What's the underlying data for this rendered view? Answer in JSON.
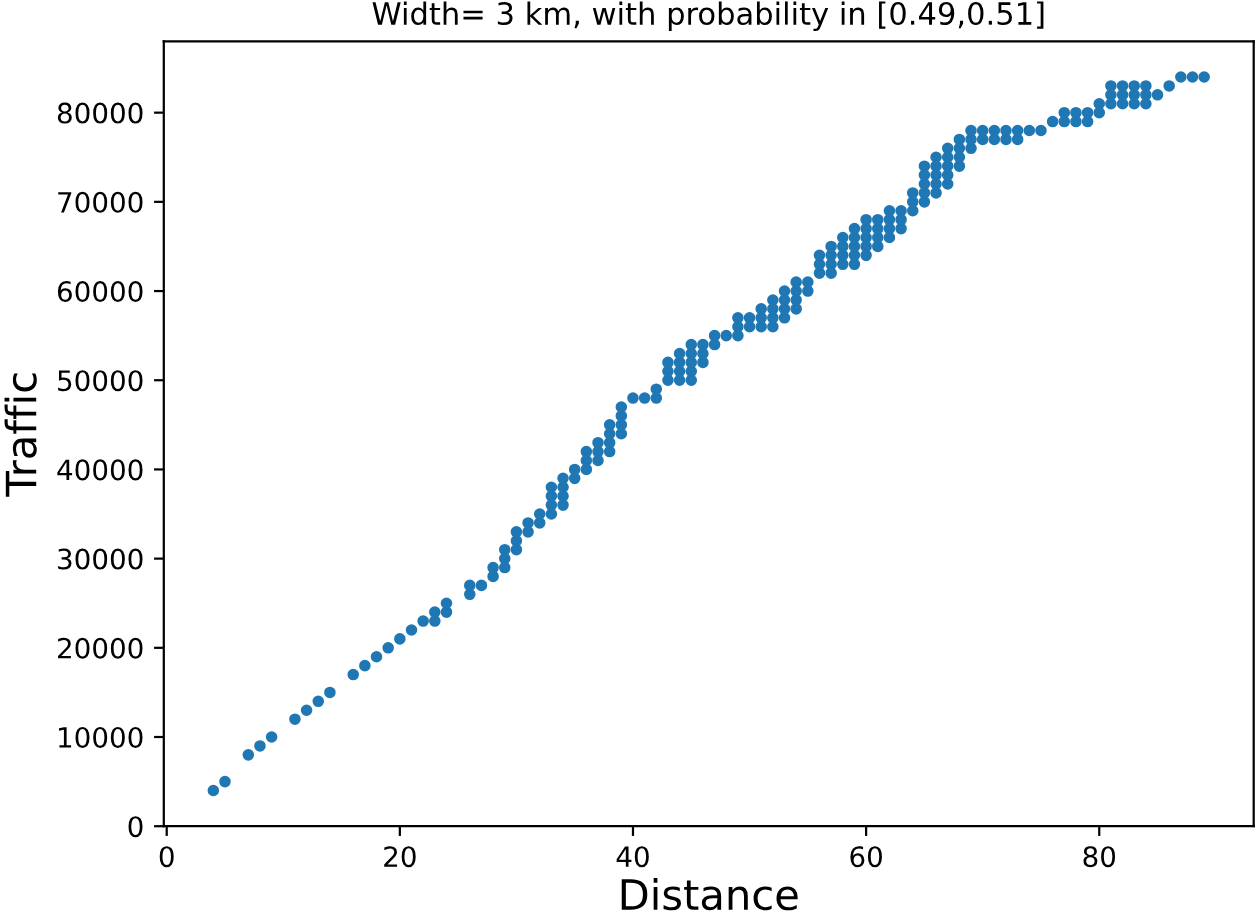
{
  "chart_data": {
    "type": "scatter",
    "title": "Width= 3 km, with probability in [0.49,0.51]",
    "xlabel": "Distance",
    "ylabel": "Traffic",
    "xlim": [
      -0.25,
      93.25
    ],
    "xticks": [
      0,
      20,
      40,
      60,
      80
    ],
    "ylim": [
      0,
      88000
    ],
    "yticks": [
      0,
      10000,
      20000,
      30000,
      40000,
      50000,
      60000,
      70000,
      80000
    ],
    "grid": false,
    "legend": false,
    "marker": "circle",
    "series": [
      {
        "color": "#1f77b4",
        "x": [
          4,
          5,
          7,
          8,
          9,
          11,
          12,
          13,
          14,
          16,
          17,
          18,
          19,
          20,
          21,
          22,
          23,
          23,
          24,
          24,
          26,
          26,
          27,
          28,
          28,
          29,
          29,
          29,
          30,
          30,
          30,
          31,
          31,
          32,
          32,
          33,
          33,
          33,
          33,
          34,
          34,
          34,
          34,
          35,
          35,
          36,
          36,
          36,
          37,
          37,
          37,
          38,
          38,
          38,
          38,
          39,
          39,
          39,
          39,
          40,
          41,
          42,
          42,
          43,
          43,
          43,
          44,
          44,
          44,
          44,
          45,
          45,
          45,
          45,
          45,
          46,
          46,
          46,
          47,
          47,
          48,
          49,
          49,
          49,
          50,
          50,
          51,
          51,
          51,
          52,
          52,
          52,
          52,
          53,
          53,
          53,
          53,
          54,
          54,
          54,
          54,
          55,
          55,
          56,
          56,
          56,
          57,
          57,
          57,
          57,
          58,
          58,
          58,
          58,
          59,
          59,
          59,
          59,
          59,
          60,
          60,
          60,
          60,
          60,
          61,
          61,
          61,
          61,
          62,
          62,
          62,
          62,
          63,
          63,
          63,
          64,
          64,
          64,
          65,
          65,
          65,
          65,
          65,
          66,
          66,
          66,
          66,
          66,
          67,
          67,
          67,
          67,
          67,
          68,
          68,
          68,
          68,
          69,
          69,
          69,
          70,
          70,
          71,
          71,
          72,
          72,
          73,
          73,
          74,
          75,
          76,
          77,
          77,
          78,
          78,
          79,
          79,
          80,
          80,
          81,
          81,
          81,
          82,
          82,
          82,
          83,
          83,
          83,
          84,
          84,
          84,
          85,
          86,
          87,
          88,
          89
        ],
        "values": [
          4000,
          5000,
          8000,
          9000,
          10000,
          12000,
          13000,
          14000,
          15000,
          17000,
          18000,
          19000,
          20000,
          21000,
          22000,
          23000,
          23000,
          24000,
          24000,
          25000,
          26000,
          27000,
          27000,
          28000,
          29000,
          29000,
          30000,
          31000,
          31000,
          32000,
          33000,
          33000,
          34000,
          34000,
          35000,
          35000,
          36000,
          37000,
          38000,
          36000,
          37000,
          38000,
          39000,
          39000,
          40000,
          40000,
          41000,
          42000,
          41000,
          42000,
          43000,
          42000,
          43000,
          44000,
          45000,
          44000,
          45000,
          46000,
          47000,
          48000,
          48000,
          48000,
          49000,
          50000,
          51000,
          52000,
          50000,
          51000,
          52000,
          53000,
          50000,
          51000,
          52000,
          53000,
          54000,
          52000,
          53000,
          54000,
          54000,
          55000,
          55000,
          55000,
          56000,
          57000,
          56000,
          57000,
          56000,
          57000,
          58000,
          56000,
          57000,
          58000,
          59000,
          57000,
          58000,
          59000,
          60000,
          58000,
          59000,
          60000,
          61000,
          60000,
          61000,
          62000,
          63000,
          64000,
          62000,
          63000,
          64000,
          65000,
          63000,
          64000,
          65000,
          66000,
          63000,
          64000,
          65000,
          66000,
          67000,
          64000,
          65000,
          66000,
          67000,
          68000,
          65000,
          66000,
          67000,
          68000,
          66000,
          67000,
          68000,
          69000,
          67000,
          68000,
          69000,
          69000,
          70000,
          71000,
          70000,
          71000,
          72000,
          73000,
          74000,
          71000,
          72000,
          73000,
          74000,
          75000,
          72000,
          73000,
          74000,
          75000,
          76000,
          74000,
          75000,
          76000,
          77000,
          76000,
          77000,
          78000,
          77000,
          78000,
          77000,
          78000,
          77000,
          78000,
          77000,
          78000,
          78000,
          78000,
          79000,
          79000,
          80000,
          79000,
          80000,
          79000,
          80000,
          80000,
          81000,
          81000,
          82000,
          83000,
          81000,
          82000,
          83000,
          81000,
          82000,
          83000,
          81000,
          82000,
          83000,
          82000,
          83000,
          84000,
          84000,
          84000
        ]
      }
    ]
  }
}
